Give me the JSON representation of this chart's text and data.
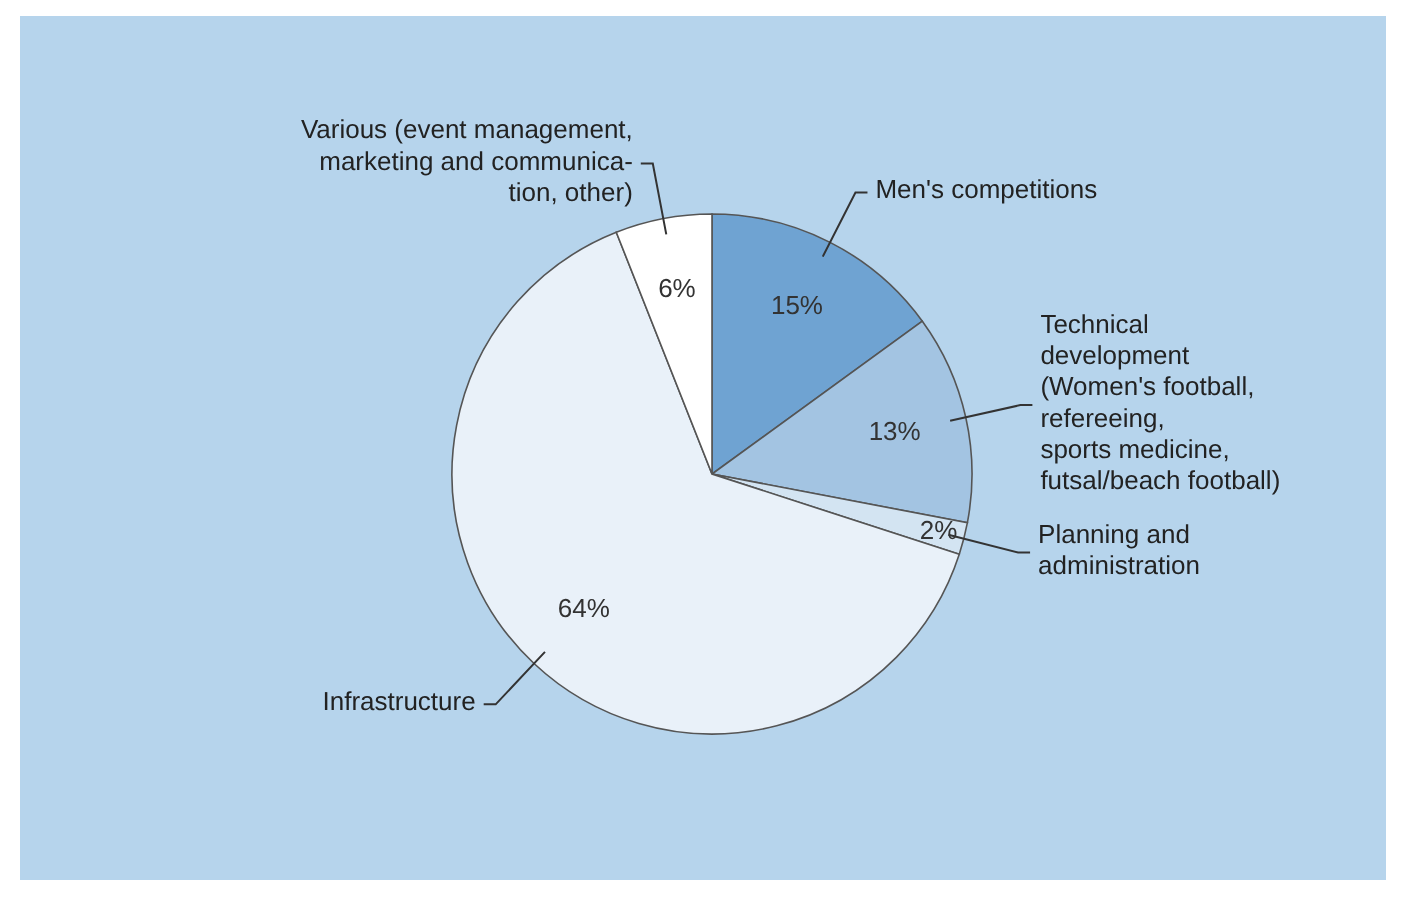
{
  "chart_data": {
    "type": "pie",
    "categories": [
      "Men's competitions",
      "Technical\ndevelopment\n(Women's football,\nrefereeing,\nsports medicine,\nfutsal/beach football)",
      "Planning and\nadministration",
      "Infrastructure",
      "Various (event management,\nmarketing and communica-\ntion, other)"
    ],
    "values": [
      15,
      13,
      2,
      64,
      6
    ],
    "value_labels": [
      "15%",
      "13%",
      "2%",
      "64%",
      "6%"
    ],
    "colors": [
      "#6fa3d2",
      "#a3c4e2",
      "#d3e4f2",
      "#e9f1f9",
      "#ffffff"
    ]
  }
}
